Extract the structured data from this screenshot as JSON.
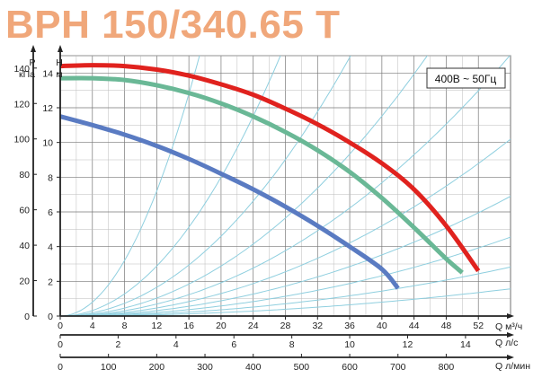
{
  "chart_data": {
    "type": "line",
    "title": "BPH 150/340.65 T",
    "legend_box": "400В ~ 50Гц",
    "y_left_axis": {
      "label_line1": "P",
      "label_line2": "кПа",
      "ticks": [
        "0",
        "20",
        "40",
        "60",
        "80",
        "100",
        "120",
        "140"
      ],
      "range": [
        0,
        147
      ]
    },
    "y_right_axis": {
      "label_line1": "H",
      "label_line2": "м",
      "ticks": [
        "0",
        "2",
        "4",
        "6",
        "8",
        "10",
        "12",
        "14"
      ],
      "range": [
        0,
        15
      ]
    },
    "x_axis_m3h": {
      "label": "Q м³/ч",
      "ticks": [
        "0",
        "4",
        "8",
        "12",
        "16",
        "20",
        "24",
        "28",
        "32",
        "36",
        "40",
        "44",
        "48",
        "52"
      ],
      "range": [
        0,
        56
      ]
    },
    "x_axis_ls": {
      "label": "Q л/с",
      "ticks": [
        "0",
        "2",
        "4",
        "6",
        "8",
        "10",
        "12",
        "14"
      ],
      "values": [
        0,
        2,
        4,
        6,
        8,
        10,
        12,
        14
      ]
    },
    "x_axis_lmin": {
      "label": "Q л/мин",
      "ticks": [
        "0",
        "100",
        "200",
        "300",
        "400",
        "500",
        "600",
        "700",
        "800"
      ],
      "values": [
        0,
        100,
        200,
        300,
        400,
        500,
        600,
        700,
        800
      ]
    },
    "grid": true,
    "series": [
      {
        "color": "#e0221e",
        "points": [
          [
            0,
            14.4
          ],
          [
            4,
            14.45
          ],
          [
            8,
            14.4
          ],
          [
            12,
            14.2
          ],
          [
            16,
            13.85
          ],
          [
            20,
            13.35
          ],
          [
            24,
            12.75
          ],
          [
            28,
            11.95
          ],
          [
            32,
            11.05
          ],
          [
            36,
            10.0
          ],
          [
            40,
            8.8
          ],
          [
            44,
            7.3
          ],
          [
            48,
            5.2
          ],
          [
            52,
            2.6
          ]
        ]
      },
      {
        "color": "#6ab896",
        "points": [
          [
            0,
            13.7
          ],
          [
            4,
            13.7
          ],
          [
            8,
            13.6
          ],
          [
            12,
            13.3
          ],
          [
            16,
            12.85
          ],
          [
            20,
            12.25
          ],
          [
            24,
            11.5
          ],
          [
            28,
            10.6
          ],
          [
            32,
            9.55
          ],
          [
            36,
            8.3
          ],
          [
            40,
            6.8
          ],
          [
            44,
            5.1
          ],
          [
            48,
            3.3
          ],
          [
            50,
            2.5
          ]
        ]
      },
      {
        "color": "#5a7bc2",
        "points": [
          [
            0,
            11.5
          ],
          [
            4,
            11.0
          ],
          [
            8,
            10.45
          ],
          [
            12,
            9.8
          ],
          [
            16,
            9.05
          ],
          [
            20,
            8.2
          ],
          [
            24,
            7.3
          ],
          [
            28,
            6.3
          ],
          [
            32,
            5.2
          ],
          [
            36,
            4.0
          ],
          [
            40,
            2.7
          ],
          [
            42,
            1.6
          ]
        ]
      }
    ],
    "system_curves": {
      "color": "#8fcfdf",
      "coefficients": [
        0.05,
        0.02,
        0.0115,
        0.0072,
        0.0048,
        0.00325,
        0.0022,
        0.00145,
        0.0009,
        0.0005
      ]
    }
  }
}
